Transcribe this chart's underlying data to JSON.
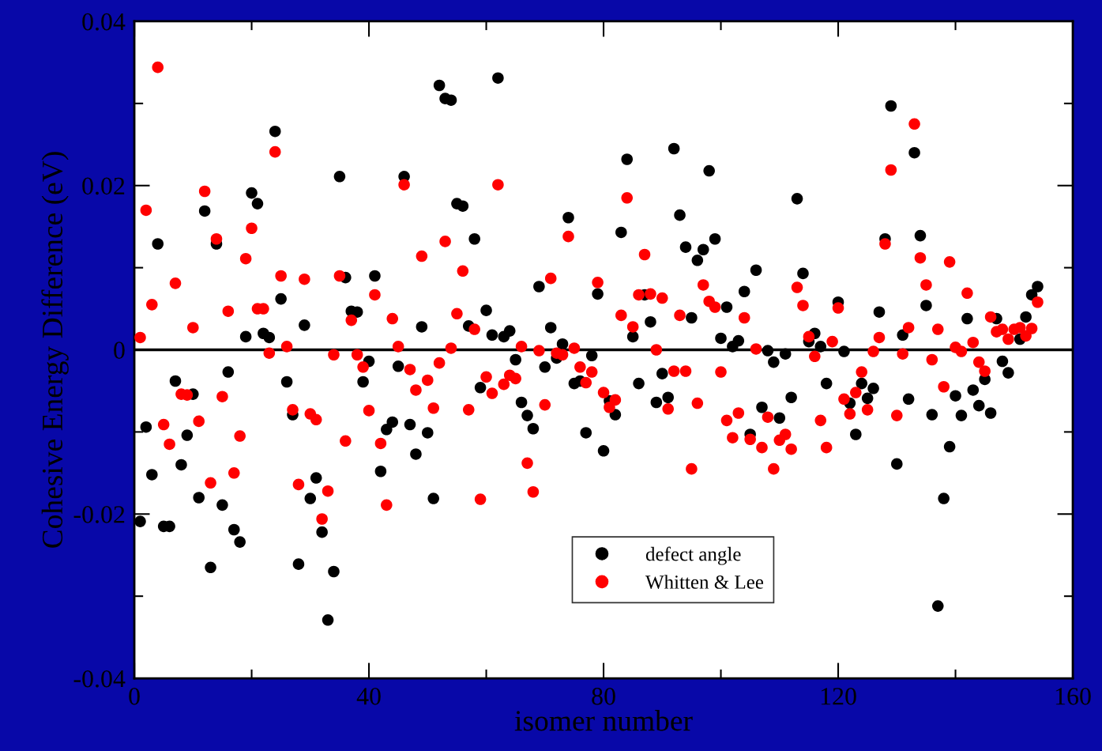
{
  "chart_data": {
    "type": "scatter",
    "xlabel": "isomer number",
    "ylabel": "Cohesive Energy Difference (eV)",
    "xlim": [
      0,
      160
    ],
    "ylim": [
      -0.04,
      0.04
    ],
    "xticks": [
      0,
      {
        "value": 20,
        "label": null
      },
      40,
      {
        "value": 60,
        "label": null
      },
      80,
      {
        "value": 100,
        "label": null
      },
      120,
      {
        "value": 140,
        "label": null
      },
      160
    ],
    "yticks": [
      -0.04,
      {
        "value": -0.03,
        "label": null
      },
      -0.02,
      {
        "value": -0.01,
        "label": null
      },
      0,
      {
        "value": 0.01,
        "label": null
      },
      0.02,
      {
        "value": 0.03,
        "label": null
      },
      0.04
    ],
    "grid": false,
    "legend": "bottom",
    "marker": "circle",
    "ref_lines": [
      {
        "axis": "y",
        "value": 0,
        "color": "#000000",
        "line_style": "solid"
      }
    ],
    "series": [
      {
        "name": "defect angle",
        "color": "#000000",
        "x": [
          1,
          2,
          3,
          4,
          5,
          6,
          7,
          8,
          9,
          10,
          11,
          12,
          13,
          14,
          15,
          16,
          17,
          18,
          19,
          20,
          21,
          22,
          23,
          24,
          25,
          26,
          27,
          28,
          29,
          30,
          31,
          32,
          33,
          34,
          35,
          36,
          37,
          38,
          39,
          40,
          41,
          42,
          43,
          44,
          45,
          46,
          47,
          48,
          49,
          50,
          51,
          52,
          53,
          54,
          55,
          56,
          57,
          58,
          59,
          60,
          61,
          62,
          63,
          64,
          65,
          66,
          67,
          68,
          69,
          70,
          71,
          72,
          73,
          74,
          75,
          76,
          77,
          78,
          79,
          80,
          81,
          82,
          83,
          84,
          85,
          86,
          87,
          88,
          89,
          90,
          91,
          92,
          93,
          94,
          95,
          96,
          97,
          98,
          99,
          100,
          101,
          102,
          103,
          104,
          105,
          106,
          107,
          108,
          109,
          110,
          111,
          112,
          113,
          114,
          115,
          116,
          117,
          118,
          120,
          121,
          122,
          123,
          124,
          125,
          126,
          127,
          128,
          129,
          130,
          131,
          132,
          133,
          134,
          135,
          136,
          137,
          138,
          139,
          140,
          141,
          142,
          143,
          144,
          145,
          146,
          147,
          148,
          149,
          151,
          152,
          153,
          154
        ],
        "values": [
          -0.0209,
          -0.0094,
          -0.0152,
          0.0129,
          -0.0215,
          -0.0215,
          -0.0038,
          -0.014,
          -0.0104,
          -0.0054,
          -0.018,
          0.0169,
          -0.0265,
          0.0129,
          -0.0189,
          -0.0027,
          -0.0219,
          -0.0234,
          0.0016,
          0.0191,
          0.0178,
          0.002,
          0.0015,
          0.0266,
          0.0062,
          -0.0039,
          -0.0079,
          -0.0261,
          0.003,
          -0.0181,
          -0.0156,
          -0.0222,
          -0.0329,
          -0.027,
          0.0211,
          0.0088,
          0.0047,
          0.0046,
          -0.0039,
          -0.0014,
          0.009,
          -0.0148,
          -0.0097,
          -0.0088,
          -0.002,
          0.0211,
          -0.0091,
          -0.0127,
          0.0028,
          -0.0101,
          -0.0181,
          0.0322,
          0.0306,
          0.0304,
          0.0178,
          0.0175,
          0.0029,
          0.0135,
          -0.0046,
          0.0048,
          0.0018,
          0.0331,
          0.0016,
          0.0023,
          -0.0012,
          -0.0064,
          -0.008,
          -0.0096,
          0.0077,
          -0.0021,
          0.0027,
          -0.001,
          0.0007,
          0.0161,
          -0.0041,
          -0.0038,
          -0.0101,
          -0.0007,
          0.0068,
          -0.0123,
          -0.0062,
          -0.0079,
          0.0143,
          0.0232,
          0.0016,
          -0.0041,
          0.0067,
          0.0034,
          -0.0064,
          -0.0029,
          -0.0058,
          0.0245,
          0.0164,
          0.0125,
          0.0039,
          0.0109,
          0.0122,
          0.0218,
          0.0135,
          0.0014,
          0.0052,
          0.0004,
          0.0011,
          0.0071,
          -0.0103,
          0.0097,
          -0.007,
          -0.0001,
          -0.0015,
          -0.0083,
          -0.0005,
          -0.0058,
          0.0184,
          0.0093,
          0.001,
          0.002,
          0.0004,
          -0.0041,
          0.0058,
          -0.0002,
          -0.0065,
          -0.0103,
          -0.0041,
          -0.0059,
          -0.0047,
          0.0046,
          0.0135,
          0.0297,
          -0.0139,
          0.0018,
          -0.006,
          0.024,
          0.0139,
          0.0054,
          -0.0079,
          -0.0312,
          -0.0181,
          -0.0118,
          -0.0056,
          -0.008,
          0.0038,
          -0.0049,
          -0.0068,
          -0.0036,
          -0.0077,
          0.0038,
          -0.0014,
          -0.0028,
          0.0013,
          0.004,
          0.0067,
          0.0077
        ]
      },
      {
        "name": "Whitten & Lee",
        "color": "#ff0000",
        "x": [
          1,
          2,
          3,
          4,
          5,
          6,
          7,
          8,
          9,
          10,
          11,
          12,
          13,
          14,
          15,
          16,
          17,
          18,
          19,
          20,
          21,
          22,
          23,
          24,
          25,
          26,
          27,
          28,
          29,
          30,
          31,
          32,
          33,
          34,
          35,
          36,
          37,
          38,
          39,
          40,
          41,
          42,
          43,
          44,
          45,
          46,
          47,
          48,
          49,
          50,
          51,
          52,
          53,
          54,
          55,
          56,
          57,
          58,
          59,
          60,
          61,
          62,
          63,
          64,
          65,
          66,
          67,
          68,
          69,
          70,
          71,
          72,
          73,
          74,
          75,
          76,
          77,
          78,
          79,
          80,
          81,
          82,
          83,
          84,
          85,
          86,
          87,
          88,
          89,
          90,
          91,
          92,
          93,
          94,
          95,
          96,
          97,
          98,
          99,
          100,
          101,
          102,
          103,
          104,
          105,
          106,
          107,
          108,
          109,
          110,
          111,
          112,
          113,
          114,
          115,
          116,
          117,
          118,
          119,
          120,
          121,
          122,
          123,
          124,
          125,
          126,
          127,
          128,
          129,
          130,
          131,
          132,
          133,
          134,
          135,
          136,
          137,
          138,
          139,
          140,
          141,
          142,
          143,
          144,
          145,
          146,
          147,
          148,
          149,
          150,
          151,
          152,
          153,
          154
        ],
        "values": [
          0.0015,
          0.017,
          0.0055,
          0.0344,
          -0.0091,
          -0.0115,
          0.0081,
          -0.0054,
          -0.0055,
          0.0027,
          -0.0087,
          0.0193,
          -0.0162,
          0.0135,
          -0.0057,
          0.0047,
          -0.015,
          -0.0105,
          0.0111,
          0.0148,
          0.005,
          0.005,
          -0.0004,
          0.0241,
          0.009,
          0.0004,
          -0.0073,
          -0.0164,
          0.0086,
          -0.0078,
          -0.0085,
          -0.0206,
          -0.0172,
          -0.0006,
          0.009,
          -0.0111,
          0.0036,
          -0.0006,
          -0.0021,
          -0.0074,
          0.0067,
          -0.0114,
          -0.0189,
          0.0038,
          0.0004,
          0.0201,
          -0.0024,
          -0.0049,
          0.0114,
          -0.0037,
          -0.0071,
          -0.0016,
          0.0132,
          0.0002,
          0.0044,
          0.0096,
          -0.0073,
          0.0025,
          -0.0182,
          -0.0033,
          -0.0053,
          0.0201,
          -0.0042,
          -0.0031,
          -0.0035,
          0.0004,
          -0.0138,
          -0.0173,
          -0.0001,
          -0.0067,
          0.0087,
          -0.0004,
          -0.0006,
          0.0138,
          0.0002,
          -0.0021,
          -0.004,
          -0.0027,
          0.0082,
          -0.0052,
          -0.007,
          -0.0061,
          0.0042,
          0.0185,
          0.0028,
          0.0067,
          0.0116,
          0.0068,
          0.0,
          0.0063,
          -0.0072,
          -0.0026,
          0.0042,
          -0.0026,
          -0.0145,
          -0.0065,
          0.0079,
          0.0059,
          0.0052,
          -0.0027,
          -0.0086,
          -0.0107,
          -0.0077,
          0.0039,
          -0.0109,
          0.0001,
          -0.0119,
          -0.0082,
          -0.0145,
          -0.011,
          -0.0103,
          -0.0121,
          0.0076,
          0.0054,
          0.0016,
          -0.0008,
          -0.0086,
          -0.0119,
          0.001,
          0.0051,
          -0.006,
          -0.0078,
          -0.0052,
          -0.0027,
          -0.0073,
          -0.0002,
          0.0015,
          0.0129,
          0.0219,
          -0.008,
          -0.0005,
          0.0027,
          0.0275,
          0.0112,
          0.0079,
          -0.0012,
          0.0025,
          -0.0045,
          0.0107,
          0.0003,
          -0.0002,
          0.0069,
          0.0009,
          -0.0015,
          -0.0026,
          0.004,
          0.0022,
          0.0025,
          0.0013,
          0.0025,
          0.0027,
          0.0017,
          0.0026,
          0.0058
        ]
      }
    ]
  }
}
